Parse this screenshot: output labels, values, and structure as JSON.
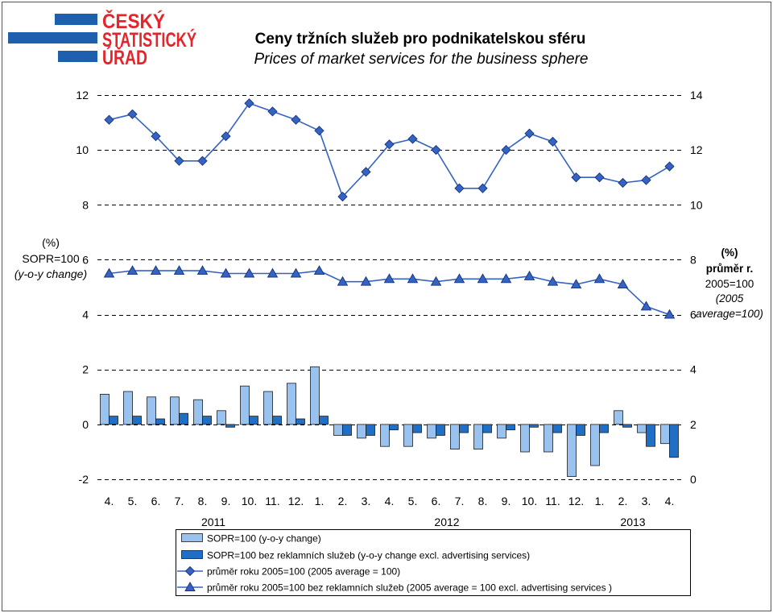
{
  "logo": {
    "lines": [
      "ČESKÝ",
      "STATISTICKÝ",
      "ÚŘAD"
    ],
    "text_color": "#e4262c",
    "bar_color": "#1e5fae"
  },
  "chart_data": {
    "type": "bar",
    "title": "Ceny tržních služeb pro podnikatelskou sféru",
    "subtitle": "Prices of market services for the business sphere",
    "categories": [
      "4.",
      "5.",
      "6.",
      "7.",
      "8.",
      "9.",
      "10.",
      "11.",
      "12.",
      "1.",
      "2.",
      "3.",
      "4.",
      "5.",
      "6.",
      "7.",
      "8.",
      "9.",
      "10.",
      "11.",
      "12.",
      "1.",
      "2.",
      "3.",
      "4."
    ],
    "years": [
      "2011",
      "2012",
      "2013"
    ],
    "y_left": {
      "label": [
        "(%)",
        "SOPR=100",
        "(y-o-y change)"
      ],
      "min": -2,
      "max": 12,
      "ticks": [
        12,
        10,
        8,
        6,
        4,
        2,
        0,
        -2
      ]
    },
    "y_right": {
      "label": [
        "(%)",
        "průměr r.",
        "2005=100",
        "(2005",
        "average=100)"
      ],
      "min": 0,
      "max": 14,
      "ticks": [
        14,
        12,
        10,
        8,
        6,
        4,
        2,
        0
      ]
    },
    "grid": true,
    "legend_position": "bottom",
    "series": [
      {
        "name": "SOPR=100 (y-o-y change)",
        "type": "bar",
        "axis": "left",
        "color": "#99c2ee",
        "values": [
          1.1,
          1.2,
          1.0,
          1.0,
          0.9,
          0.5,
          1.4,
          1.2,
          1.5,
          2.1,
          -0.4,
          -0.5,
          -0.8,
          -0.8,
          -0.5,
          -0.9,
          -0.9,
          -0.5,
          -1.0,
          -1.0,
          -1.9,
          -1.5,
          0.5,
          -0.3,
          -0.7
        ]
      },
      {
        "name": "SOPR=100 bez reklamních služeb (y-o-y change excl. advertising services)",
        "type": "bar",
        "axis": "left",
        "color": "#1f6fc6",
        "values": [
          0.3,
          0.3,
          0.2,
          0.4,
          0.3,
          -0.1,
          0.3,
          0.3,
          0.2,
          0.3,
          -0.4,
          -0.4,
          -0.2,
          -0.3,
          -0.4,
          -0.3,
          -0.3,
          -0.2,
          -0.1,
          -0.3,
          -0.4,
          -0.3,
          -0.1,
          -0.8,
          -1.2
        ]
      },
      {
        "name": "průměr roku 2005=100 (2005 average = 100)",
        "type": "line",
        "marker": "diamond",
        "axis": "right",
        "color": "#3563c4",
        "values": [
          13.1,
          13.3,
          12.5,
          11.6,
          11.6,
          12.5,
          13.7,
          13.4,
          13.1,
          12.7,
          10.3,
          11.2,
          12.2,
          12.4,
          12.0,
          10.6,
          10.6,
          12.0,
          12.6,
          12.3,
          11.0,
          11.0,
          10.8,
          10.9,
          11.4
        ]
      },
      {
        "name": "průměr roku 2005=100 bez reklamních služeb (2005 average = 100 excl. advertising services )",
        "type": "line",
        "marker": "triangle",
        "axis": "right",
        "color": "#3563c4",
        "values": [
          7.5,
          7.6,
          7.6,
          7.6,
          7.6,
          7.5,
          7.5,
          7.5,
          7.5,
          7.6,
          7.2,
          7.2,
          7.3,
          7.3,
          7.2,
          7.3,
          7.3,
          7.3,
          7.4,
          7.2,
          7.1,
          7.3,
          7.1,
          6.3,
          6.0
        ]
      }
    ]
  }
}
